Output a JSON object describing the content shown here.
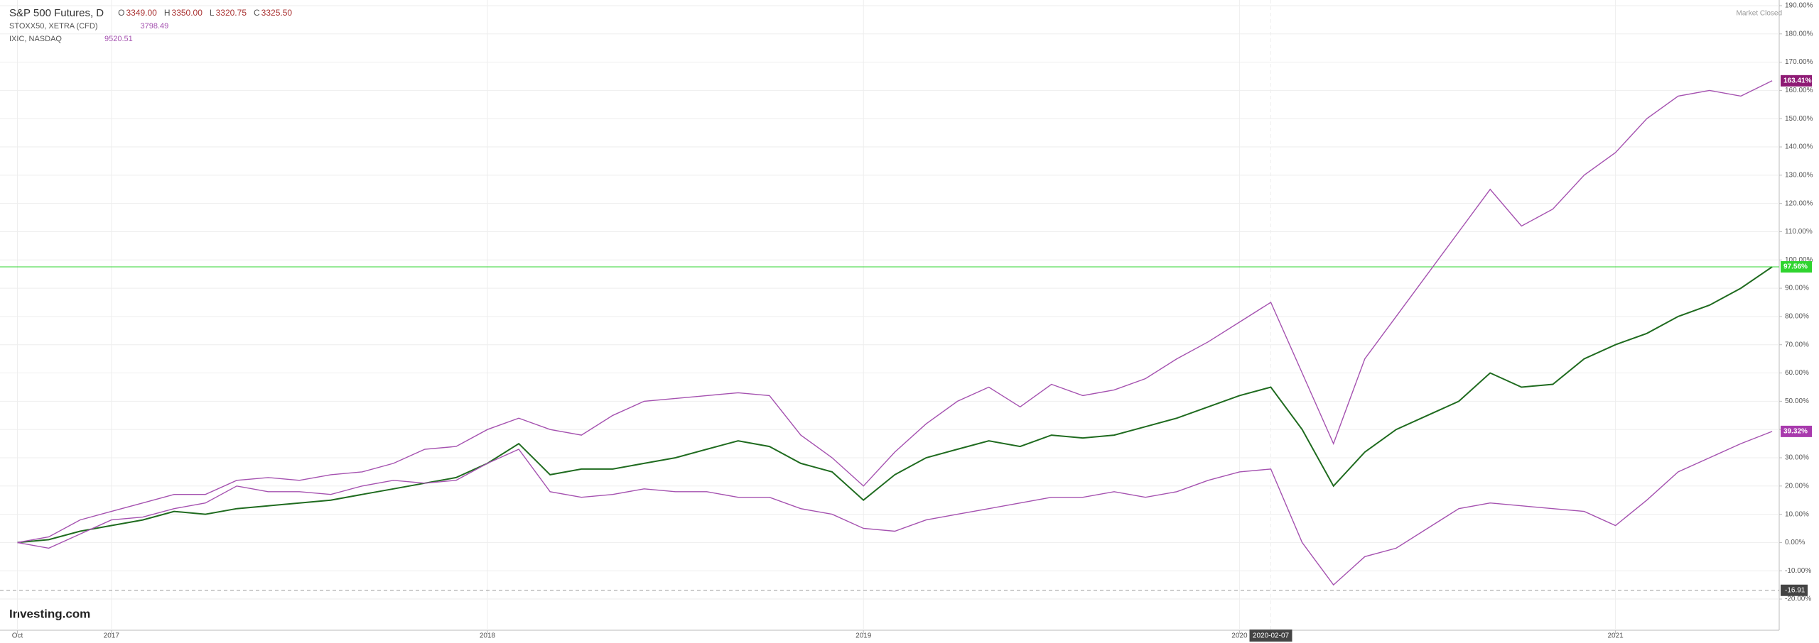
{
  "header": {
    "ohlc": [
      {
        "label": "O",
        "value": "3349.00"
      },
      {
        "label": "H",
        "value": "3350.00"
      },
      {
        "label": "L",
        "value": "3320.75"
      },
      {
        "label": "C",
        "value": "3325.50"
      }
    ],
    "status": "Market Closed",
    "logo": "Investing.com"
  },
  "chart_data": {
    "type": "line",
    "categories": [
      "Oct",
      null,
      null,
      "2017",
      null,
      null,
      null,
      null,
      null,
      null,
      null,
      null,
      null,
      null,
      null,
      "2018",
      null,
      null,
      null,
      null,
      null,
      null,
      null,
      null,
      null,
      null,
      null,
      "2019",
      null,
      null,
      null,
      null,
      null,
      null,
      null,
      null,
      null,
      null,
      null,
      "2020",
      "2020-02-07",
      null,
      null,
      null,
      null,
      null,
      null,
      null,
      null,
      null,
      null,
      "2021",
      null,
      null,
      null,
      null,
      null
    ],
    "series": [
      {
        "name": "S&P 500 Futures, D",
        "color": "#1f6b1f",
        "label_color": "#2fd42f",
        "last_label": "97.56%",
        "values": [
          0,
          1,
          4,
          6,
          8,
          11,
          10,
          12,
          13,
          14,
          15,
          17,
          19,
          21,
          23,
          28,
          35,
          24,
          26,
          26,
          28,
          30,
          33,
          36,
          34,
          28,
          25,
          15,
          24,
          30,
          33,
          36,
          34,
          38,
          37,
          38,
          41,
          44,
          48,
          52,
          55,
          40,
          20,
          32,
          40,
          45,
          50,
          60,
          55,
          56,
          65,
          70,
          74,
          80,
          84,
          90,
          97.56
        ]
      },
      {
        "name": "STOXX50, XETRA (CFD)",
        "color": "#a552b0",
        "label_color": "#a83aad",
        "last_label": "39.32%",
        "last_price": "3798.49",
        "values": [
          0,
          -2,
          3,
          8,
          9,
          12,
          14,
          20,
          18,
          18,
          17,
          20,
          22,
          21,
          22,
          28,
          33,
          18,
          16,
          17,
          19,
          18,
          18,
          16,
          16,
          12,
          10,
          5,
          4,
          8,
          10,
          12,
          14,
          16,
          16,
          18,
          16,
          18,
          22,
          25,
          26,
          0,
          -15,
          -5,
          -2,
          5,
          12,
          14,
          13,
          12,
          11,
          6,
          15,
          25,
          30,
          35,
          39.32
        ]
      },
      {
        "name": "IXIC, NASDAQ",
        "color": "#a552b0",
        "label_color": "#8e1a74",
        "last_label": "163.41%",
        "last_price": "9520.51",
        "values": [
          0,
          2,
          8,
          11,
          14,
          17,
          17,
          22,
          23,
          22,
          24,
          25,
          28,
          33,
          34,
          40,
          44,
          40,
          38,
          45,
          50,
          51,
          52,
          53,
          52,
          38,
          30,
          20,
          32,
          42,
          50,
          55,
          48,
          56,
          52,
          54,
          58,
          65,
          71,
          78,
          85,
          60,
          35,
          65,
          80,
          95,
          110,
          125,
          112,
          118,
          130,
          138,
          150,
          158,
          160,
          158,
          163.41
        ]
      }
    ],
    "crosshair": {
      "value": -16.91,
      "label": "-16.91"
    },
    "ylim": [
      -23,
      192
    ],
    "yticks": [
      {
        "value": -20,
        "label": "-20.00%"
      },
      {
        "value": -10,
        "label": "-10.00%"
      },
      {
        "value": 0,
        "label": "0.00%"
      },
      {
        "value": 10,
        "label": "10.00%"
      },
      {
        "value": 20,
        "label": "20.00%"
      },
      {
        "value": 30,
        "label": "30.00%"
      },
      {
        "value": 40,
        "label": "40.00%"
      },
      {
        "value": 50,
        "label": "50.00%"
      },
      {
        "value": 60,
        "label": "60.00%"
      },
      {
        "value": 70,
        "label": "70.00%"
      },
      {
        "value": 80,
        "label": "80.00%"
      },
      {
        "value": 90,
        "label": "90.00%"
      },
      {
        "value": 100,
        "label": "100.00%"
      },
      {
        "value": 110,
        "label": "110.00%"
      },
      {
        "value": 120,
        "label": "120.00%"
      },
      {
        "value": 130,
        "label": "130.00%"
      },
      {
        "value": 140,
        "label": "140.00%"
      },
      {
        "value": 150,
        "label": "150.00%"
      },
      {
        "value": 160,
        "label": "160.00%"
      },
      {
        "value": 170,
        "label": "170.00%"
      },
      {
        "value": 180,
        "label": "180.00%"
      },
      {
        "value": 190,
        "label": "190.00%"
      }
    ],
    "grid": true
  }
}
